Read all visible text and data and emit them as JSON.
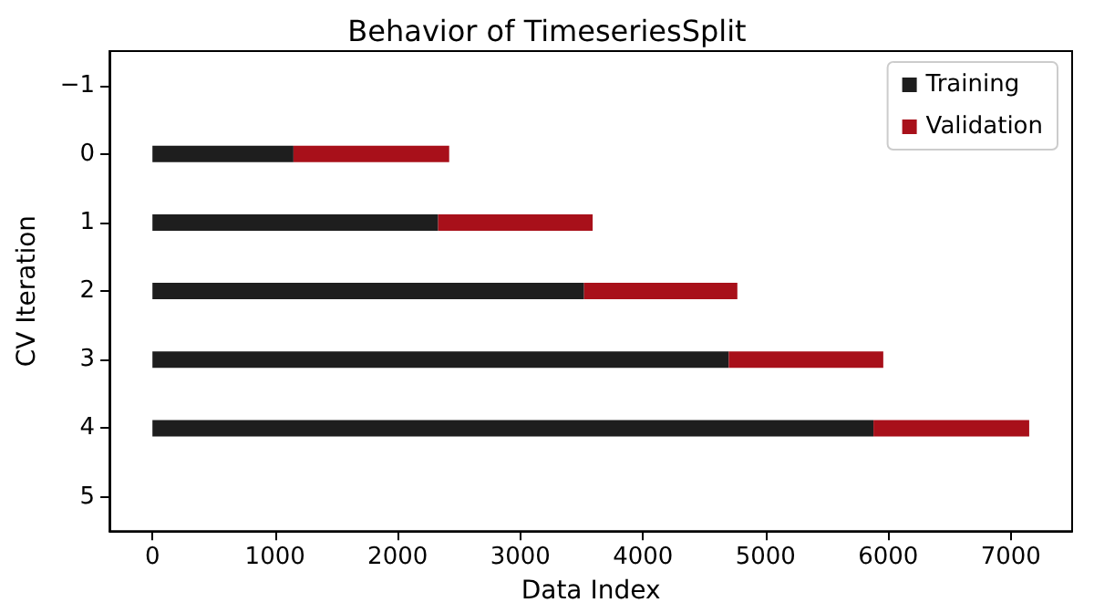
{
  "chart_data": {
    "type": "bar",
    "title": "Behavior of TimeseriesSplit",
    "xlabel": "Data Index",
    "ylabel": "CV Iteration",
    "orientation": "horizontal",
    "stacked": true,
    "categories": [
      "−1",
      "0",
      "1",
      "2",
      "3",
      "4",
      "5"
    ],
    "series": [
      {
        "name": "Training",
        "color": "#1e1e1e",
        "values": [
          null,
          1150,
          2330,
          3520,
          4700,
          5880,
          null
        ]
      },
      {
        "name": "Validation",
        "color": "#a8101a",
        "values": [
          null,
          1270,
          1260,
          1250,
          1260,
          1270,
          null
        ]
      }
    ],
    "xlim": [
      -350,
      7500
    ],
    "xticks": [
      0,
      1000,
      2000,
      3000,
      4000,
      5000,
      6000,
      7000
    ],
    "grid": false,
    "legend": "top right"
  }
}
